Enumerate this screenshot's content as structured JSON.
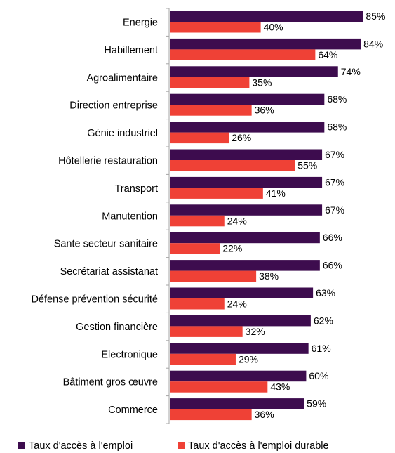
{
  "chart_data": {
    "type": "bar",
    "orientation": "horizontal",
    "title": "",
    "xlabel": "",
    "ylabel": "",
    "xlim": [
      0,
      100
    ],
    "grid": false,
    "legend_position": "bottom",
    "categories": [
      "Energie",
      "Habillement",
      "Agroalimentaire",
      "Direction entreprise",
      "Génie industriel",
      "Hôtellerie restauration",
      "Transport",
      "Manutention",
      "Sante secteur sanitaire",
      "Secrétariat assistanat",
      "Défense prévention sécurité",
      "Gestion financière",
      "Electronique",
      "Bâtiment gros œuvre",
      "Commerce"
    ],
    "series": [
      {
        "name": "Taux d'accès à l'emploi",
        "color": "#3d0c4e",
        "values": [
          85,
          84,
          74,
          68,
          68,
          67,
          67,
          67,
          66,
          66,
          63,
          62,
          61,
          60,
          59
        ],
        "labels": [
          "85%",
          "84%",
          "74%",
          "68%",
          "68%",
          "67%",
          "67%",
          "67%",
          "66%",
          "66%",
          "63%",
          "62%",
          "61%",
          "60%",
          "59%"
        ]
      },
      {
        "name": "Taux d'accès à l'emploi durable",
        "color": "#ef4136",
        "values": [
          40,
          64,
          35,
          36,
          26,
          55,
          41,
          24,
          22,
          38,
          24,
          32,
          29,
          43,
          36
        ],
        "labels": [
          "40%",
          "64%",
          "35%",
          "36%",
          "26%",
          "55%",
          "41%",
          "24%",
          "22%",
          "38%",
          "24%",
          "32%",
          "29%",
          "43%",
          "36%"
        ]
      }
    ]
  }
}
